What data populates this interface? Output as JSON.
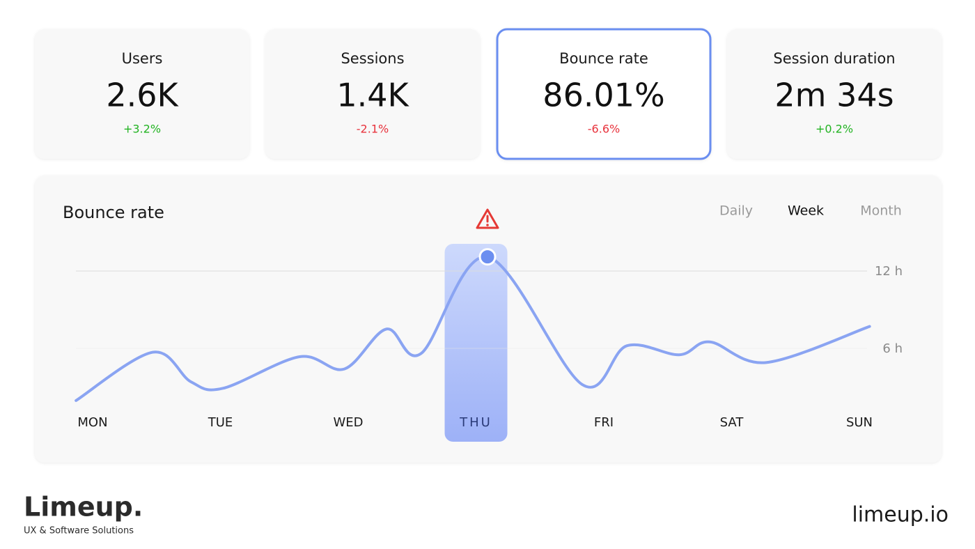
{
  "kpis": [
    {
      "label": "Users",
      "value": "2.6K",
      "change": "+3.2%",
      "change_color": "#22b322"
    },
    {
      "label": "Sessions",
      "value": "1.4K",
      "change": "-2.1%",
      "change_color": "#e8323c"
    },
    {
      "label": "Bounce rate",
      "value": "86.01%",
      "change": "-6.6%",
      "change_color": "#e8323c"
    },
    {
      "label": "Session duration",
      "value": "2m 34s",
      "change": "+0.2%",
      "change_color": "#22b322"
    }
  ],
  "selected_kpi": 2,
  "chart_data": {
    "type": "line",
    "title": "Bounce rate",
    "tabs": [
      "Daily",
      "Week",
      "Month"
    ],
    "active_tab": 1,
    "x": [
      -0.13,
      0.47,
      0.77,
      1.02,
      1.62,
      1.97,
      2.3,
      2.57,
      3.09,
      3.83,
      4.18,
      4.59,
      4.83,
      5.27,
      6.08
    ],
    "values": [
      1.95,
      5.7,
      3.4,
      2.9,
      5.35,
      4.4,
      7.5,
      5.6,
      13.1,
      3.2,
      6.2,
      5.5,
      6.5,
      4.9,
      7.7
    ],
    "color": "#8aa4f2",
    "highlight_point": 8,
    "highlight_tick": 3,
    "xlim": [
      -0.13,
      6.08
    ],
    "xticks": [
      {
        "value": 0,
        "label": "MON"
      },
      {
        "value": 1,
        "label": "TUE"
      },
      {
        "value": 2,
        "label": "WED"
      },
      {
        "value": 3,
        "label": "THU"
      },
      {
        "value": 4,
        "label": "FRI"
      },
      {
        "value": 5,
        "label": "SAT"
      },
      {
        "value": 6,
        "label": "SUN"
      }
    ],
    "ylim": [
      0,
      14
    ],
    "yticks": [
      {
        "value": 6,
        "label": "6 h"
      },
      {
        "value": 12,
        "label": "12 h"
      }
    ],
    "grid": true
  },
  "footer": {
    "brand": "Limeup.",
    "tagline": "UX & Software Solutions",
    "url": "limeup.io"
  }
}
